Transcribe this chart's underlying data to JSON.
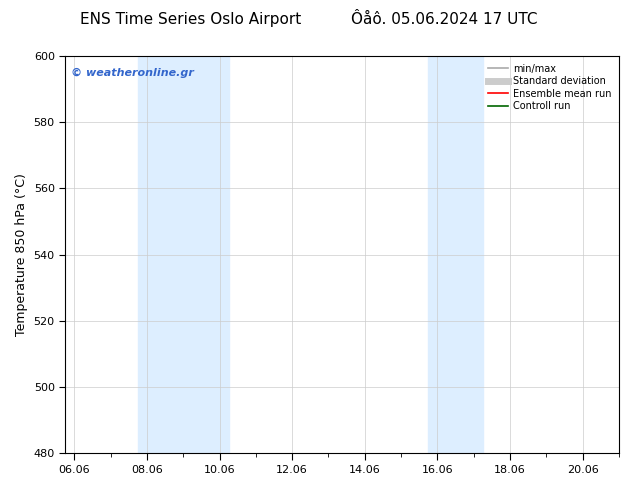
{
  "title_left": "ENS Time Series Oslo Airport",
  "title_right": "Ôåô. 05.06.2024 17 UTC",
  "ylabel": "Temperature 850 hPa (°C)",
  "xlabel_ticks": [
    "06.06",
    "08.06",
    "10.06",
    "12.06",
    "14.06",
    "16.06",
    "18.06",
    "20.06"
  ],
  "xlim_days": [
    5.75,
    21.0
  ],
  "ylim": [
    480,
    600
  ],
  "yticks": [
    480,
    500,
    520,
    540,
    560,
    580,
    600
  ],
  "bg_color": "#ffffff",
  "plot_bg_color": "#ffffff",
  "shaded_bands": [
    {
      "xmin": 7.75,
      "xmax": 10.25,
      "color": "#ddeeff"
    },
    {
      "xmin": 15.75,
      "xmax": 17.25,
      "color": "#ddeeff"
    }
  ],
  "watermark_text": "© weatheronline.gr",
  "watermark_color": "#3366cc",
  "legend_items": [
    {
      "label": "min/max",
      "color": "#aaaaaa",
      "lw": 1.2,
      "style": "solid"
    },
    {
      "label": "Standard deviation",
      "color": "#cccccc",
      "lw": 5,
      "style": "solid"
    },
    {
      "label": "Ensemble mean run",
      "color": "#ff0000",
      "lw": 1.2,
      "style": "solid"
    },
    {
      "label": "Controll run",
      "color": "#006600",
      "lw": 1.2,
      "style": "solid"
    }
  ],
  "grid_color": "#cccccc",
  "grid_lw": 0.5,
  "font_size_title": 11,
  "font_size_axis": 9,
  "font_size_tick": 8,
  "font_size_watermark": 8,
  "font_size_legend": 7
}
